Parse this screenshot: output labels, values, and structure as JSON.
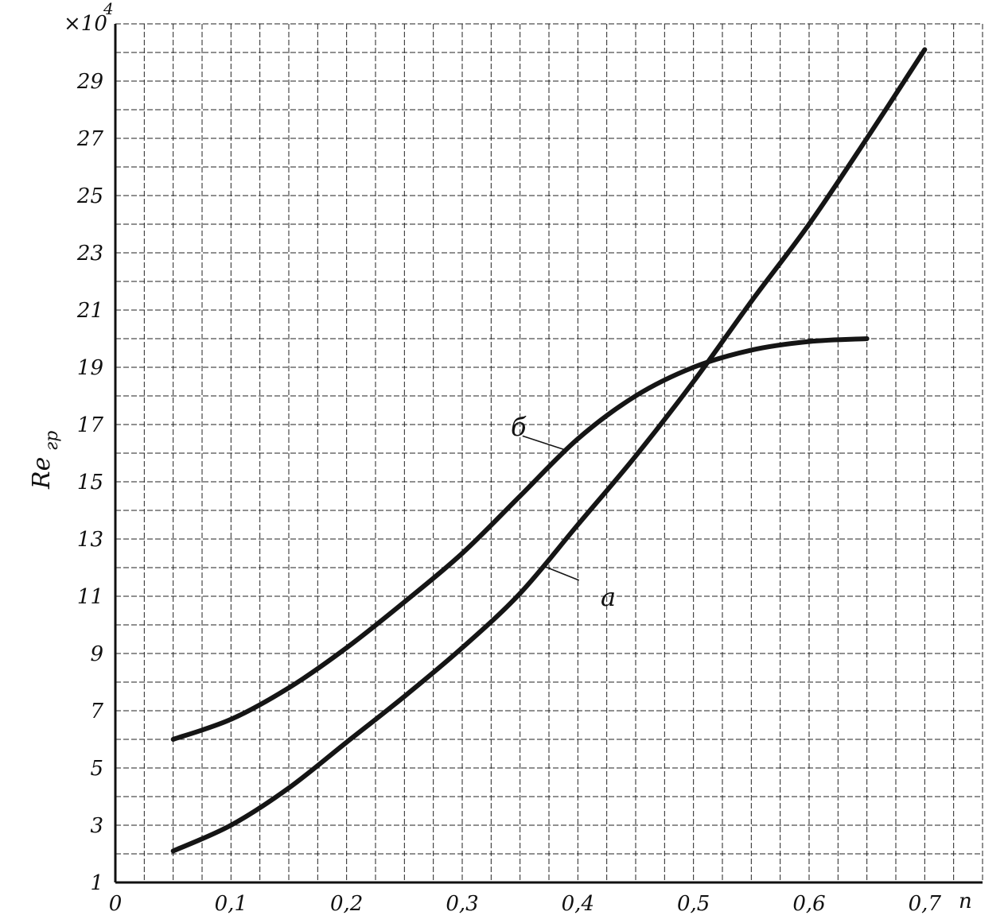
{
  "chart_data": {
    "type": "line",
    "xlabel": "n",
    "ylabel": "Re",
    "ylabel_sub": "гр",
    "multiplier": "×10",
    "multiplier_exp": "4",
    "xlim": [
      0,
      0.75
    ],
    "ylim": [
      1,
      31
    ],
    "x_ticks": [
      "0",
      "0,1",
      "0,2",
      "0,3",
      "0,4",
      "0,5",
      "0,6",
      "0,7"
    ],
    "y_ticks": [
      "1",
      "3",
      "5",
      "7",
      "9",
      "11",
      "13",
      "15",
      "17",
      "19",
      "21",
      "23",
      "25",
      "27",
      "29"
    ],
    "grid": true,
    "series": [
      {
        "name": "а",
        "x": [
          0.05,
          0.1,
          0.15,
          0.2,
          0.25,
          0.3,
          0.35,
          0.4,
          0.45,
          0.5,
          0.55,
          0.6,
          0.65,
          0.7
        ],
        "y": [
          2.1,
          3.0,
          4.3,
          5.9,
          7.5,
          9.2,
          11.1,
          13.5,
          15.9,
          18.5,
          21.3,
          24.0,
          27.0,
          30.1
        ]
      },
      {
        "name": "б",
        "x": [
          0.05,
          0.1,
          0.15,
          0.2,
          0.25,
          0.3,
          0.35,
          0.4,
          0.45,
          0.5,
          0.55,
          0.6,
          0.65
        ],
        "y": [
          6.0,
          6.7,
          7.8,
          9.2,
          10.8,
          12.5,
          14.5,
          16.5,
          18.0,
          19.0,
          19.6,
          19.9,
          20.0
        ]
      }
    ]
  }
}
